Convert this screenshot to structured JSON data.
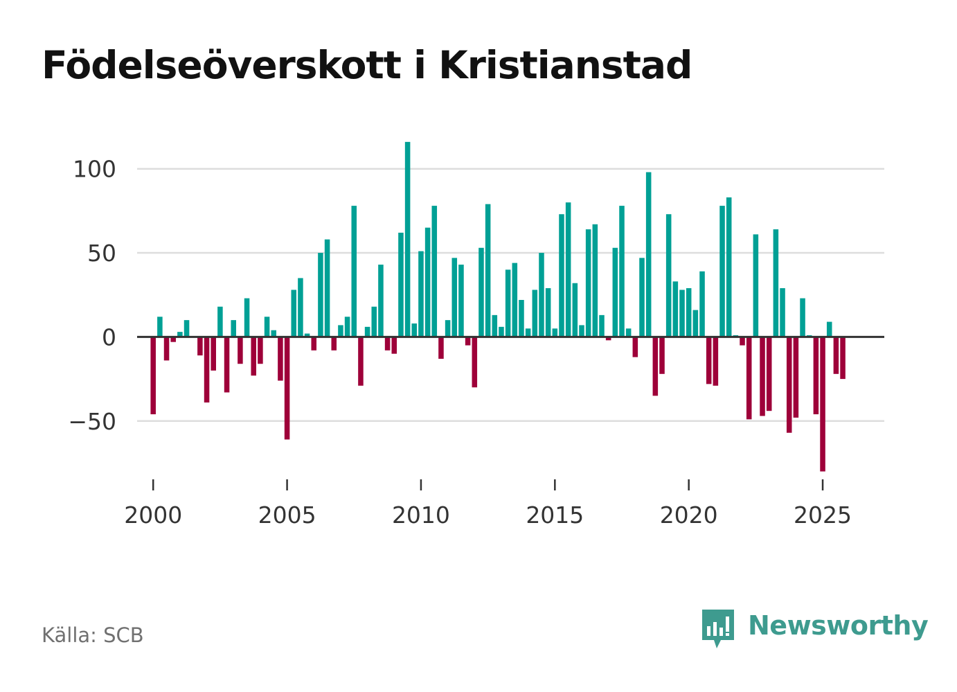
{
  "title": "Födelseöverskott i Kristianstad",
  "source": "Källa: SCB",
  "brand": {
    "name": "Newsworthy",
    "icon": "newsworthy-logo-icon",
    "color": "#3e9b8f"
  },
  "colors": {
    "positive": "#00a095",
    "negative": "#9e0039",
    "grid": "#dddddd",
    "zero_line": "#333333"
  },
  "chart_data": {
    "type": "bar",
    "title": "Födelseöverskott i Kristianstad",
    "xlabel": "",
    "ylabel": "",
    "ylim": [
      -88,
      118
    ],
    "xlim": [
      1999.4,
      2027.3
    ],
    "y_ticks": [
      100,
      50,
      0,
      -50
    ],
    "y_tick_labels": [
      "100",
      "50",
      "0",
      "−50"
    ],
    "x_ticks": [
      2000,
      2005,
      2010,
      2015,
      2020,
      2025
    ],
    "x_tick_labels": [
      "2000",
      "2005",
      "2010",
      "2015",
      "2020",
      "2025"
    ],
    "grid": true,
    "legend": "none",
    "start": 2000,
    "step": 0.25,
    "values": [
      -46,
      12,
      -14,
      -3,
      3,
      10,
      0,
      -11,
      -39,
      -20,
      18,
      -33,
      10,
      -16,
      23,
      -23,
      -16,
      12,
      4,
      -26,
      -61,
      28,
      35,
      2,
      -8,
      50,
      58,
      -8,
      7,
      12,
      78,
      -29,
      6,
      18,
      43,
      -8,
      -10,
      62,
      116,
      8,
      51,
      65,
      78,
      -13,
      10,
      47,
      43,
      -5,
      -30,
      53,
      79,
      13,
      6,
      40,
      44,
      22,
      5,
      28,
      50,
      29,
      5,
      73,
      80,
      32,
      7,
      64,
      67,
      13,
      -2,
      53,
      78,
      5,
      -12,
      47,
      98,
      -35,
      -22,
      73,
      33,
      28,
      29,
      16,
      39,
      -28,
      -29,
      78,
      83,
      1,
      -5,
      -49,
      61,
      -47,
      -44,
      64,
      29,
      -57,
      -48,
      23,
      1,
      -46,
      -80,
      9,
      -22,
      -25
    ]
  }
}
